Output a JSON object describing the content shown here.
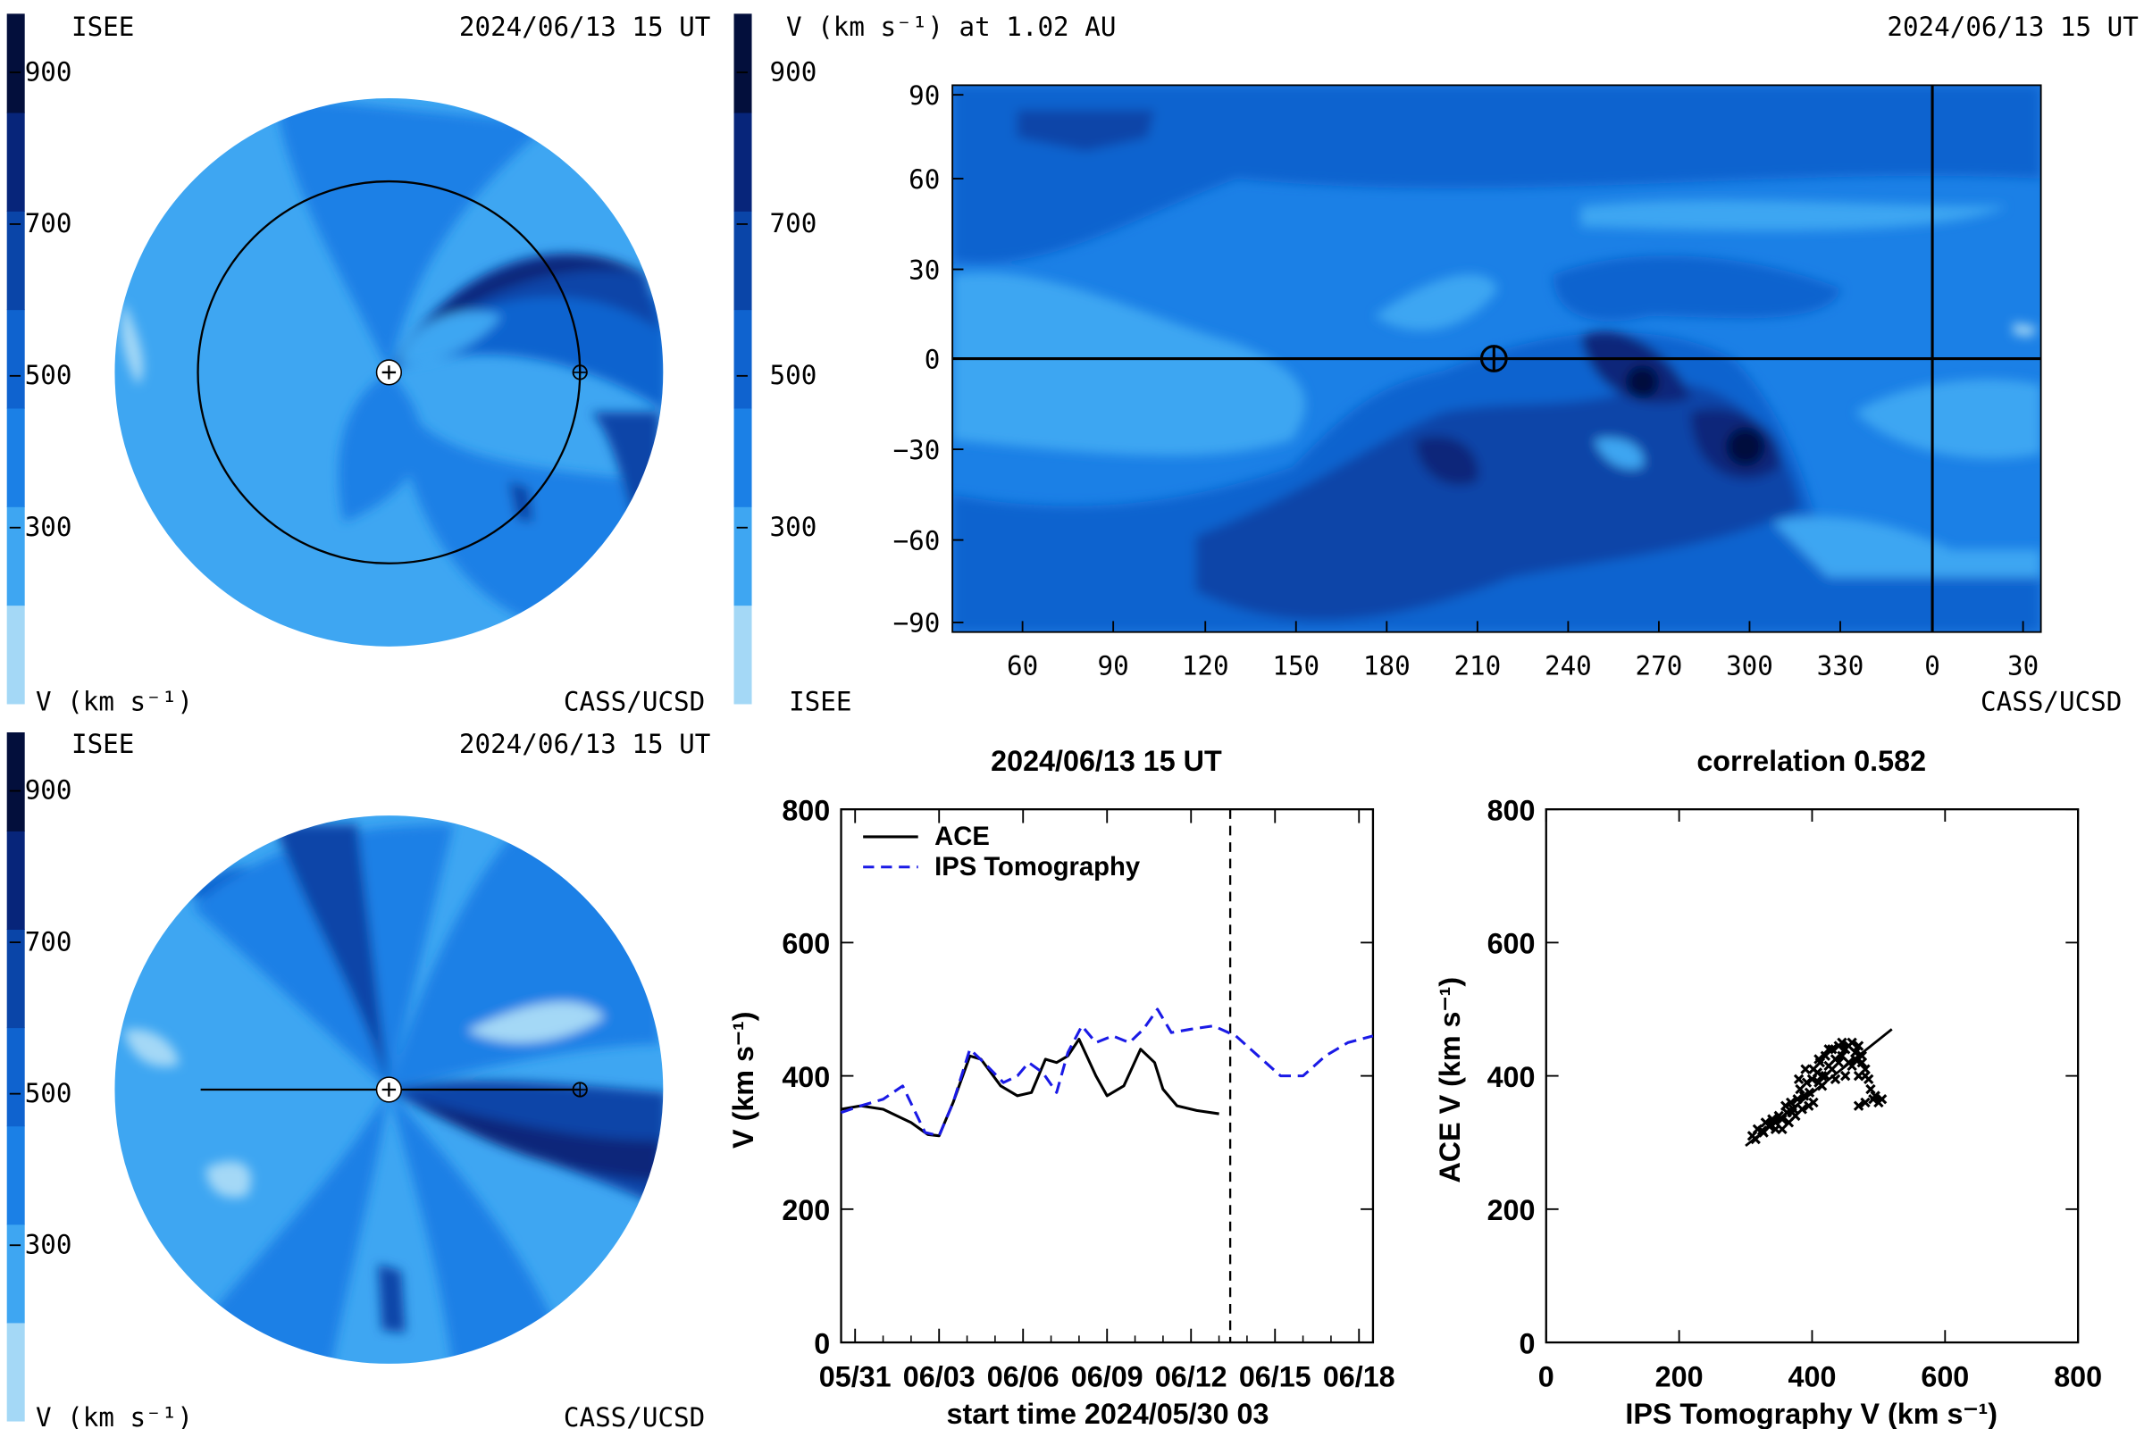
{
  "colors": {
    "scale": [
      "#a4d8f6",
      "#3ea6f2",
      "#1b80e6",
      "#0f63cf",
      "#0a45a8",
      "#07257a",
      "#030f3c"
    ],
    "background": "#ffffff",
    "ace_line": "#000000",
    "ips_line": "#1a1ae6"
  },
  "colorbar": {
    "ticks": [
      "900",
      "700",
      "500",
      "300"
    ]
  },
  "panel_top_left": {
    "org_label": "ISEE",
    "timestamp": "2024/06/13 15 UT",
    "units_label": "V (km s⁻¹)",
    "credit": "CASS/UCSD"
  },
  "panel_bottom_left": {
    "org_label": "ISEE",
    "timestamp": "2024/06/13 15 UT",
    "units_label": "V (km s⁻¹)",
    "credit": "CASS/UCSD"
  },
  "panel_map": {
    "title": "V (km s⁻¹) at 1.02 AU",
    "timestamp": "2024/06/13 15 UT",
    "org_label": "ISEE",
    "credit": "CASS/UCSD",
    "xticks": [
      "60",
      "90",
      "120",
      "150",
      "180",
      "210",
      "240",
      "270",
      "300",
      "330",
      "0",
      "30"
    ],
    "yticks": [
      "90",
      "60",
      "30",
      "0",
      "−30",
      "−60",
      "−90"
    ]
  },
  "chart_data": [
    {
      "type": "line",
      "title": "2024/06/13 15 UT",
      "xlabel": "start time 2024/05/30 03",
      "ylabel": "V (km s⁻¹)",
      "xticks": [
        "05/31",
        "06/03",
        "06/06",
        "06/09",
        "06/12",
        "06/15",
        "06/18"
      ],
      "yticks": [
        "0",
        "200",
        "400",
        "600",
        "800"
      ],
      "ylim": [
        0,
        800
      ],
      "xlim_days": [
        0.5,
        19.5
      ],
      "marker_day": 14.4,
      "series": [
        {
          "name": "ACE",
          "style": "solid",
          "x": [
            0.5,
            1.2,
            2.0,
            3.0,
            3.6,
            4.0,
            4.5,
            5.1,
            5.5,
            6.2,
            6.8,
            7.3,
            7.8,
            8.2,
            8.6,
            9.0,
            9.6,
            10.0,
            10.6,
            11.2,
            11.7,
            12.0,
            12.5,
            13.2,
            14.0
          ],
          "y": [
            350,
            355,
            350,
            330,
            312,
            310,
            360,
            430,
            425,
            385,
            370,
            375,
            425,
            420,
            430,
            455,
            400,
            370,
            385,
            440,
            420,
            380,
            355,
            348,
            343
          ]
        },
        {
          "name": "IPS Tomography",
          "style": "dashed",
          "x": [
            0.5,
            1.2,
            2.0,
            2.7,
            3.5,
            4.0,
            4.5,
            5.1,
            5.6,
            6.3,
            6.8,
            7.2,
            7.7,
            8.2,
            8.6,
            9.1,
            9.6,
            10.2,
            10.8,
            11.3,
            11.8,
            12.3,
            13.0,
            13.8,
            14.6,
            15.4,
            16.2,
            17.0,
            17.8,
            18.6,
            19.5
          ],
          "y": [
            345,
            355,
            365,
            385,
            315,
            310,
            360,
            440,
            420,
            390,
            400,
            420,
            405,
            375,
            435,
            475,
            450,
            460,
            450,
            470,
            500,
            465,
            470,
            475,
            460,
            430,
            400,
            400,
            430,
            450,
            460
          ]
        }
      ]
    },
    {
      "type": "scatter",
      "title": "correlation 0.582",
      "xlabel": "IPS Tomography V (km s⁻¹)",
      "ylabel": "ACE V (km s⁻¹)",
      "xticks": [
        "0",
        "200",
        "400",
        "600",
        "800"
      ],
      "yticks": [
        "0",
        "200",
        "400",
        "600",
        "800"
      ],
      "xlim": [
        0,
        800
      ],
      "ylim": [
        0,
        800
      ],
      "fit_line": [
        [
          300,
          295
        ],
        [
          520,
          470
        ]
      ],
      "points": [
        [
          310,
          310
        ],
        [
          318,
          320
        ],
        [
          325,
          318
        ],
        [
          330,
          330
        ],
        [
          340,
          335
        ],
        [
          345,
          320
        ],
        [
          350,
          340
        ],
        [
          355,
          335
        ],
        [
          362,
          345
        ],
        [
          368,
          360
        ],
        [
          372,
          350
        ],
        [
          378,
          365
        ],
        [
          382,
          380
        ],
        [
          388,
          370
        ],
        [
          392,
          390
        ],
        [
          396,
          375
        ],
        [
          400,
          395
        ],
        [
          402,
          410
        ],
        [
          408,
          405
        ],
        [
          412,
          420
        ],
        [
          415,
          400
        ],
        [
          420,
          430
        ],
        [
          425,
          415
        ],
        [
          430,
          440
        ],
        [
          435,
          425
        ],
        [
          440,
          445
        ],
        [
          445,
          430
        ],
        [
          450,
          440
        ],
        [
          455,
          420
        ],
        [
          460,
          450
        ],
        [
          465,
          435
        ],
        [
          470,
          445
        ],
        [
          475,
          430
        ],
        [
          480,
          410
        ],
        [
          485,
          395
        ],
        [
          488,
          380
        ],
        [
          492,
          365
        ],
        [
          495,
          370
        ],
        [
          480,
          360
        ],
        [
          470,
          355
        ],
        [
          500,
          360
        ],
        [
          505,
          365
        ],
        [
          402,
          360
        ],
        [
          395,
          355
        ],
        [
          385,
          350
        ],
        [
          375,
          340
        ],
        [
          365,
          330
        ],
        [
          355,
          320
        ],
        [
          345,
          330
        ],
        [
          410,
          390
        ],
        [
          420,
          400
        ],
        [
          430,
          410
        ],
        [
          440,
          420
        ],
        [
          450,
          400
        ],
        [
          460,
          415
        ],
        [
          470,
          400
        ],
        [
          380,
          395
        ],
        [
          390,
          410
        ],
        [
          410,
          425
        ],
        [
          425,
          440
        ],
        [
          445,
          450
        ],
        [
          455,
          445
        ],
        [
          465,
          425
        ],
        [
          475,
          420
        ],
        [
          335,
          325
        ],
        [
          327,
          315
        ],
        [
          315,
          305
        ],
        [
          360,
          355
        ],
        [
          370,
          345
        ],
        [
          415,
          385
        ],
        [
          435,
          395
        ],
        [
          480,
          400
        ]
      ]
    }
  ]
}
